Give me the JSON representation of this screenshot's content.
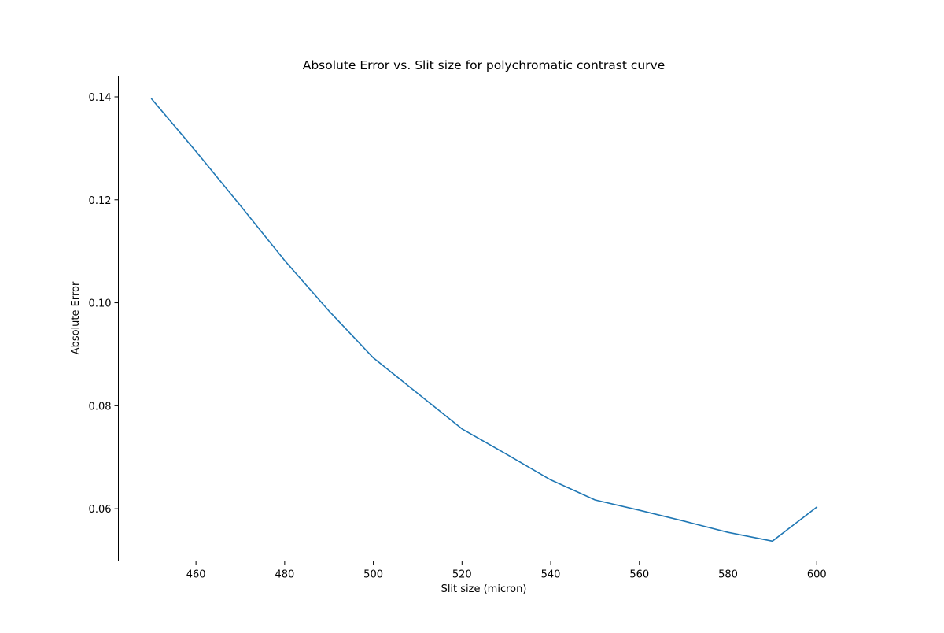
{
  "chart_data": {
    "type": "line",
    "title": "Absolute Error vs. Slit size for polychromatic contrast curve",
    "xlabel": "Slit size (micron)",
    "ylabel": "Absolute Error",
    "x": [
      450,
      460,
      470,
      480,
      490,
      500,
      510,
      520,
      530,
      540,
      550,
      560,
      570,
      580,
      590,
      600
    ],
    "series": [
      {
        "values": [
          0.1396,
          0.1294,
          0.1189,
          0.1082,
          0.0984,
          0.0893,
          0.0824,
          0.0755,
          0.0706,
          0.0656,
          0.0617,
          0.0597,
          0.0576,
          0.0554,
          0.0537,
          0.0603
        ],
        "color": "#1f77b4"
      }
    ],
    "xlim": [
      442.5,
      607.5
    ],
    "ylim": [
      0.04985,
      0.14405
    ],
    "xticks": [
      "460",
      "480",
      "500",
      "520",
      "540",
      "560",
      "580",
      "600"
    ],
    "yticks": [
      "0.06",
      "0.08",
      "0.10",
      "0.12",
      "0.14"
    ],
    "grid": false
  }
}
